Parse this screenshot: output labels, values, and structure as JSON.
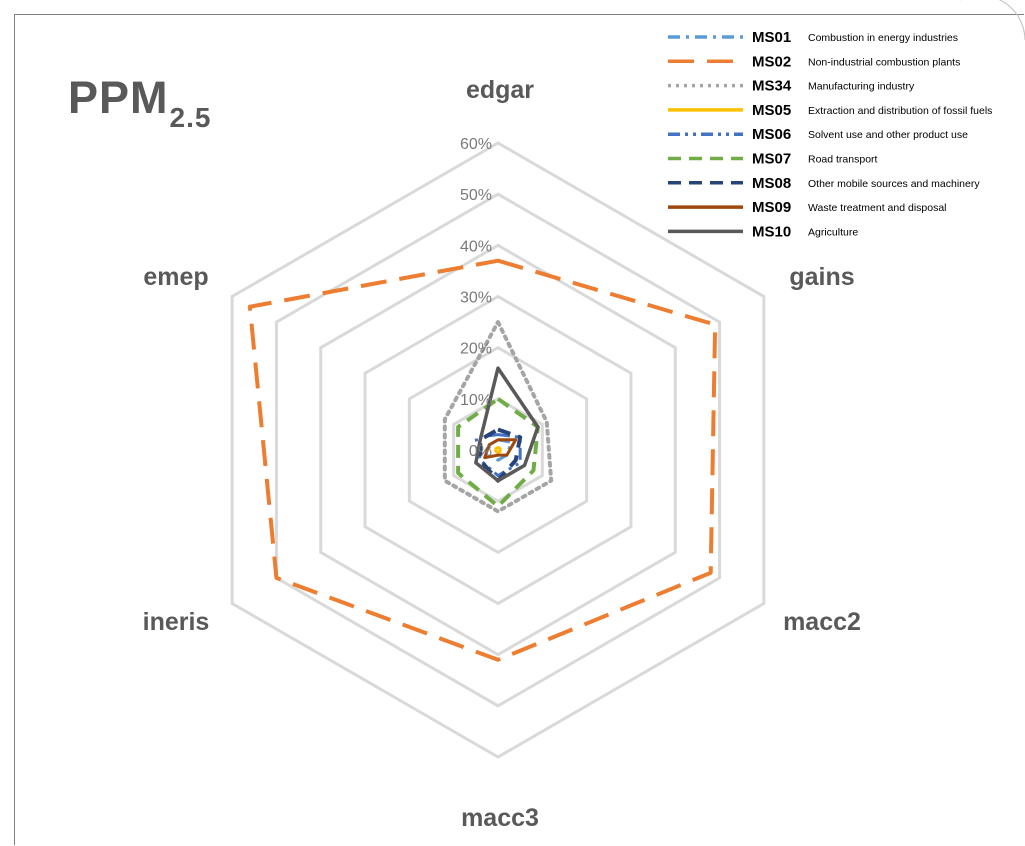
{
  "chart_data": {
    "type": "radar",
    "title_main": "PPM",
    "title_sub": "2.5",
    "axes": [
      "edgar",
      "gains",
      "macc2",
      "macc3",
      "ineris",
      "emep"
    ],
    "rlim": [
      0,
      60
    ],
    "ticks": [
      "0%",
      "10%",
      "20%",
      "30%",
      "40%",
      "50%",
      "60%"
    ],
    "tick_values": [
      0,
      10,
      20,
      30,
      40,
      50,
      60
    ],
    "grid": true,
    "legend_position": "top-right",
    "series": [
      {
        "code": "MS01",
        "name": "Combustion in energy industries",
        "color": "#5b9bd5",
        "dash": "dashdot",
        "values": [
          2,
          3,
          2,
          2,
          2,
          2
        ]
      },
      {
        "code": "MS02",
        "name": "Non-industrial combustion plants",
        "color": "#ed7d31",
        "dash": "longdash",
        "values": [
          37,
          49,
          48,
          41,
          50,
          56
        ]
      },
      {
        "code": "MS34",
        "name": "Manufacturing industry",
        "color": "#a5a5a5",
        "dash": "dot",
        "values": [
          25,
          11,
          12,
          12,
          12,
          12
        ]
      },
      {
        "code": "MS05",
        "name": "Extraction and distribution of fossil fuels",
        "color": "#ffc000",
        "dash": "solid",
        "values": [
          0.5,
          0.5,
          0.5,
          0.5,
          0.5,
          0.5
        ]
      },
      {
        "code": "MS06",
        "name": "Solvent use and other product use",
        "color": "#4472c4",
        "dash": "dashdotdot",
        "values": [
          3,
          5,
          5,
          5,
          4,
          5
        ]
      },
      {
        "code": "MS07",
        "name": "Road transport",
        "color": "#70ad47",
        "dash": "dash",
        "values": [
          10,
          9,
          8,
          11,
          9,
          9
        ]
      },
      {
        "code": "MS08",
        "name": "Other mobile sources and machinery",
        "color": "#264478",
        "dash": "dash",
        "values": [
          4,
          5,
          4,
          6,
          4,
          4
        ]
      },
      {
        "code": "MS09",
        "name": "Waste treatment and disposal",
        "color": "#9e480e",
        "dash": "solid",
        "values": [
          2,
          4,
          2,
          1,
          3,
          2
        ]
      },
      {
        "code": "MS10",
        "name": "Agriculture",
        "color": "#595959",
        "dash": "solid",
        "values": [
          16,
          9,
          6,
          6,
          5,
          4
        ]
      }
    ]
  }
}
